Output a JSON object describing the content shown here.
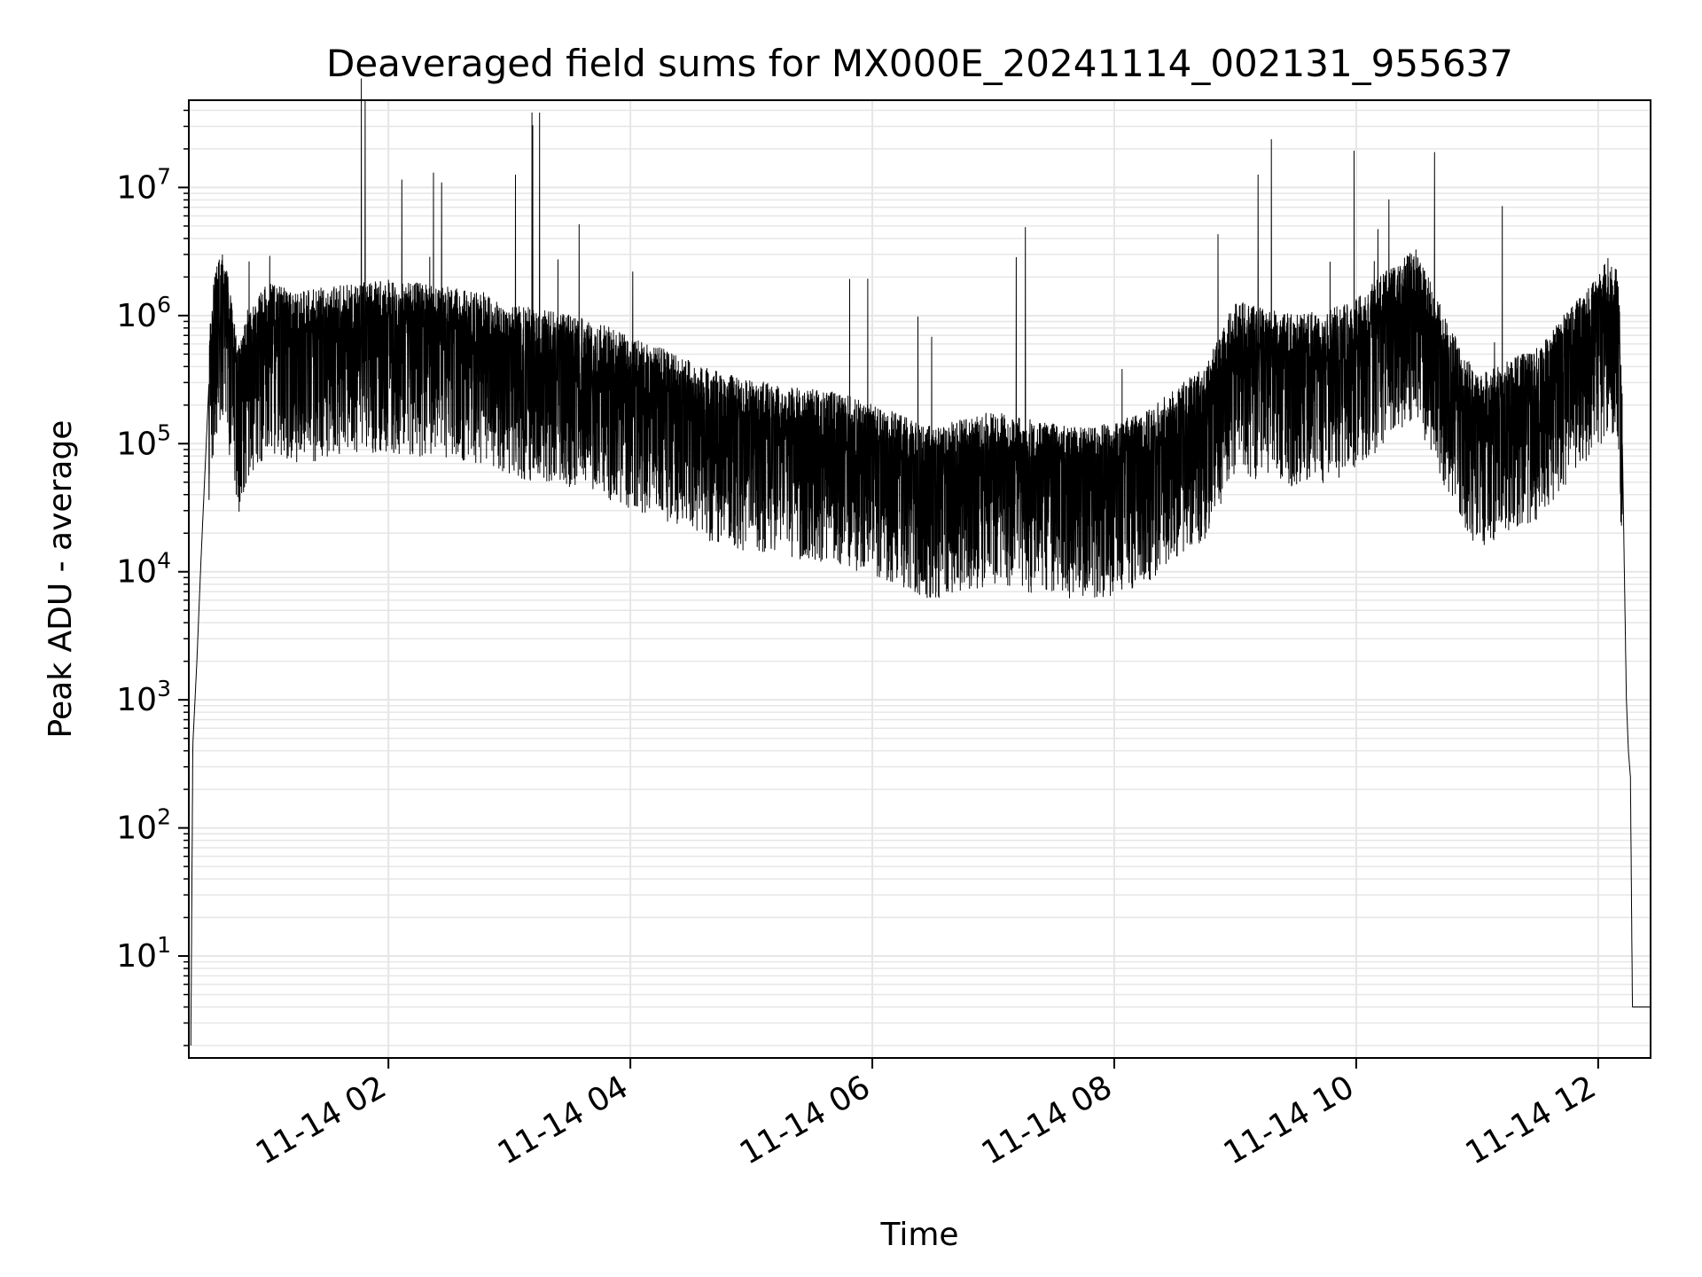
{
  "chart_data": {
    "type": "line",
    "title": "Deaveraged field sums for MX000E_20241114_002131_955637",
    "xlabel": "Time",
    "ylabel": "Peak ADU - average",
    "yscale": "log",
    "ylim": [
      1.6,
      48000000
    ],
    "xlim": [
      "11-14 00:21",
      "11-14 12:26"
    ],
    "grid": true,
    "line_color": "#000000",
    "grid_color": "#e6e6e6",
    "x_ticks": [
      {
        "value": "11-14 02:00",
        "label": "11-14 02"
      },
      {
        "value": "11-14 04:00",
        "label": "11-14 04"
      },
      {
        "value": "11-14 06:00",
        "label": "11-14 06"
      },
      {
        "value": "11-14 08:00",
        "label": "11-14 08"
      },
      {
        "value": "11-14 10:00",
        "label": "11-14 10"
      },
      {
        "value": "11-14 12:00",
        "label": "11-14 12"
      }
    ],
    "y_ticks": [
      {
        "value": 10,
        "base": "10",
        "exp": "1"
      },
      {
        "value": 100,
        "base": "10",
        "exp": "2"
      },
      {
        "value": 1000,
        "base": "10",
        "exp": "3"
      },
      {
        "value": 10000,
        "base": "10",
        "exp": "4"
      },
      {
        "value": 100000,
        "base": "10",
        "exp": "5"
      },
      {
        "value": 1000000,
        "base": "10",
        "exp": "6"
      },
      {
        "value": 10000000,
        "base": "10",
        "exp": "7"
      }
    ],
    "series": [
      {
        "x": [
          "11-14 00:22",
          "11-14 00:23",
          "11-14 00:25",
          "11-14 00:27",
          "11-14 00:29",
          "11-14 00:31",
          "11-14 00:33",
          "11-14 00:35",
          "11-14 00:38",
          "11-14 00:42",
          "11-14 00:45",
          "11-14 00:50",
          "11-14 01:00",
          "11-14 01:15",
          "11-14 01:30",
          "11-14 01:45",
          "11-14 02:00",
          "11-14 02:15",
          "11-14 02:30",
          "11-14 02:45",
          "11-14 03:00",
          "11-14 03:15",
          "11-14 03:30",
          "11-14 03:45",
          "11-14 04:00",
          "11-14 04:15",
          "11-14 04:30",
          "11-14 04:45",
          "11-14 05:00",
          "11-14 05:15",
          "11-14 05:30",
          "11-14 05:45",
          "11-14 06:00",
          "11-14 06:15",
          "11-14 06:30",
          "11-14 06:45",
          "11-14 07:00",
          "11-14 07:15",
          "11-14 07:30",
          "11-14 07:45",
          "11-14 08:00",
          "11-14 08:15",
          "11-14 08:30",
          "11-14 08:45",
          "11-14 09:00",
          "11-14 09:15",
          "11-14 09:30",
          "11-14 09:45",
          "11-14 10:00",
          "11-14 10:15",
          "11-14 10:30",
          "11-14 10:45",
          "11-14 11:00",
          "11-14 11:15",
          "11-14 11:30",
          "11-14 11:45",
          "11-14 12:00",
          "11-14 12:05",
          "11-14 12:10",
          "11-14 12:12",
          "11-14 12:14",
          "11-14 12:15",
          "11-14 12:16",
          "11-14 12:17",
          "11-14 12:20",
          "11-14 12:26"
        ],
        "y": [
          2,
          450,
          2000,
          12000,
          60000,
          300000,
          800000,
          1200000,
          1400000,
          700000,
          250000,
          500000,
          800000,
          700000,
          750000,
          800000,
          850000,
          800000,
          750000,
          700000,
          550000,
          500000,
          450000,
          400000,
          300000,
          250000,
          200000,
          160000,
          140000,
          130000,
          120000,
          110000,
          90000,
          75000,
          60000,
          70000,
          80000,
          70000,
          65000,
          60000,
          65000,
          80000,
          120000,
          180000,
          600000,
          500000,
          450000,
          500000,
          600000,
          1000000,
          1500000,
          400000,
          150000,
          200000,
          250000,
          500000,
          900000,
          1300000,
          1000000,
          100000,
          1000,
          400,
          250,
          4,
          4,
          4
        ]
      }
    ]
  }
}
